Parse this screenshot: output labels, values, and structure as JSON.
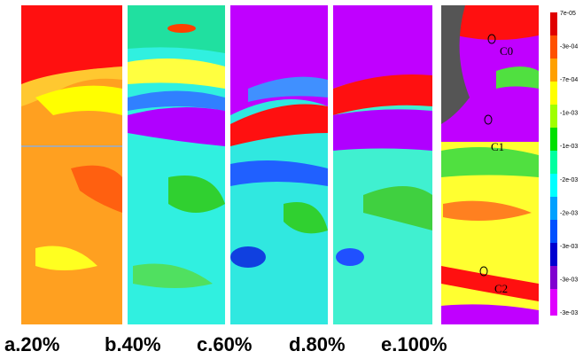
{
  "panels": [
    {
      "label": "a.20%"
    },
    {
      "label": "b.40%"
    },
    {
      "label": "c.60%"
    },
    {
      "label": "d.80%"
    },
    {
      "label": "e.100%"
    }
  ],
  "annotations": [
    "C0",
    "C1",
    "C2"
  ],
  "colorbar": {
    "labels": [
      "7e-05",
      "-3e-04",
      "-7e-04",
      "-1e-03",
      "-1e-03",
      "-2e-03",
      "-2e-03",
      "-3e-03",
      "-3e-03",
      "-3e-03"
    ]
  }
}
